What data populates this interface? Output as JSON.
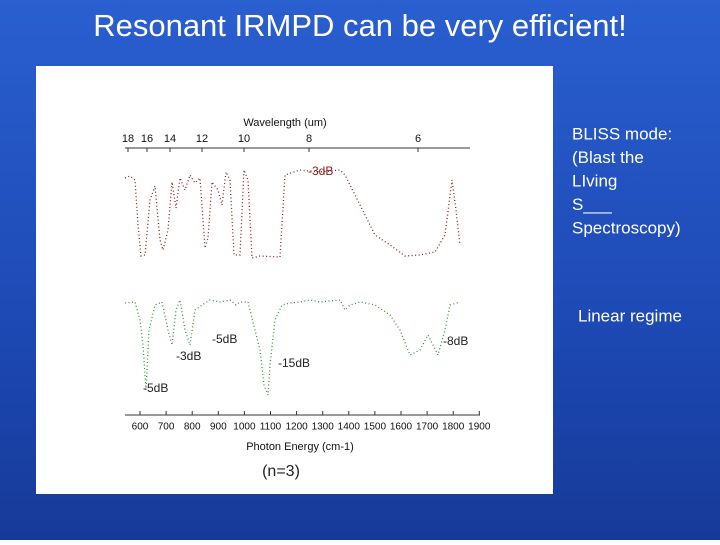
{
  "title": "Resonant IRMPD can be very efficient!",
  "notes": [
    "BLISS mode:",
    "(Blast the",
    "LIving",
    "S___",
    "Spectroscopy)"
  ],
  "regime": "Linear regime",
  "figure": {
    "top_axis": {
      "label": "Wavelength (um)",
      "ticks": [
        18,
        16,
        14,
        12,
        10,
        8,
        6
      ]
    },
    "bottom_axis": {
      "label": "Photon Energy (cm-1)",
      "ticks": [
        600,
        700,
        800,
        900,
        1000,
        1100,
        1200,
        1300,
        1400,
        1500,
        1600,
        1700,
        1800,
        1900
      ]
    },
    "annotations": [
      "-3dB",
      "-5dB",
      "-3dB",
      "-15dB",
      "-8dB",
      "-5dB"
    ],
    "caption": "(n=3)"
  }
}
